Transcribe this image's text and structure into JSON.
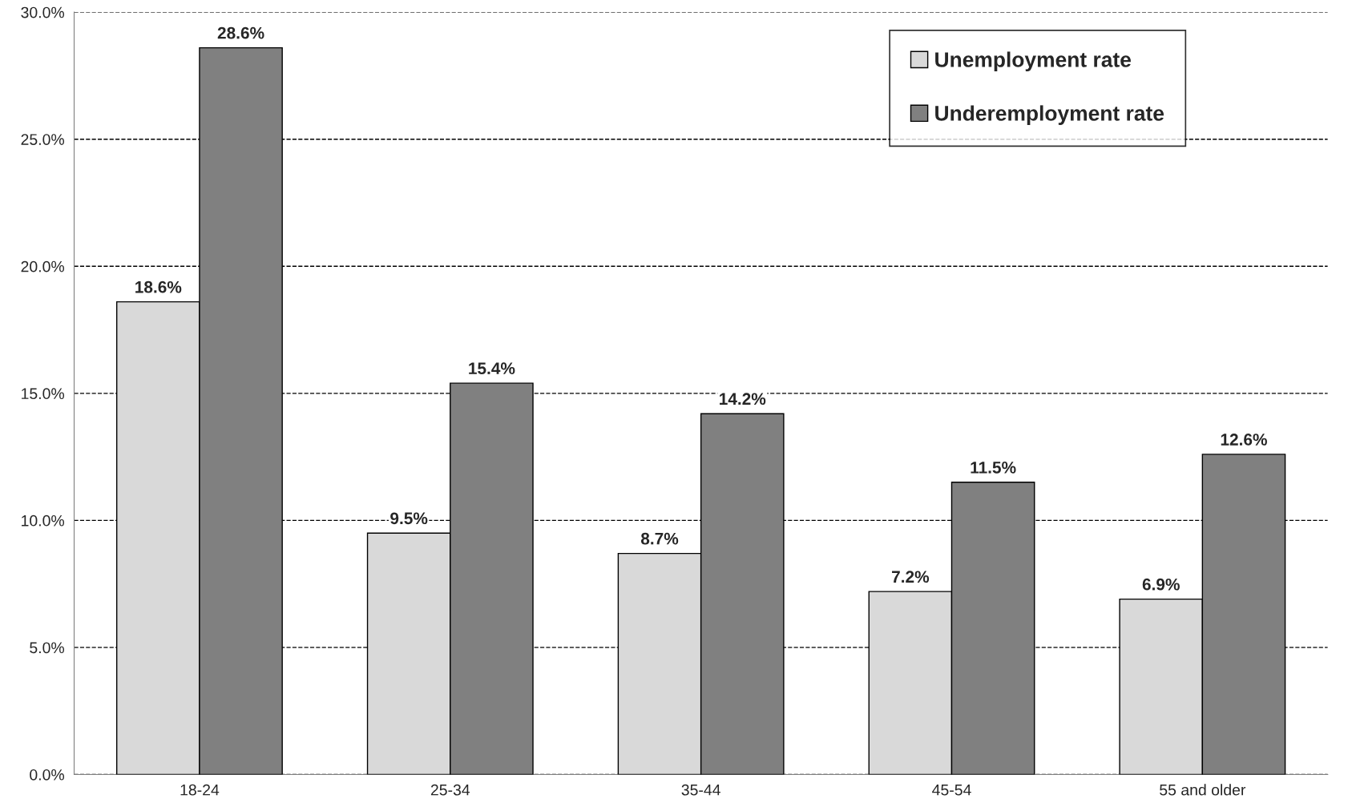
{
  "chart_data": {
    "type": "bar",
    "categories": [
      "18-24",
      "25-34",
      "35-44",
      "45-54",
      "55 and older"
    ],
    "series": [
      {
        "name": "Unemployment rate",
        "color": "#d9d9d9",
        "values": [
          18.6,
          9.5,
          8.7,
          7.2,
          6.9
        ],
        "value_labels": [
          "18.6%",
          "9.5%",
          "8.7%",
          "7.2%",
          "6.9%"
        ]
      },
      {
        "name": "Underemployment rate",
        "color": "#808080",
        "values": [
          28.6,
          15.4,
          14.2,
          11.5,
          12.6
        ],
        "value_labels": [
          "28.6%",
          "15.4%",
          "14.2%",
          "11.5%",
          "12.6%"
        ]
      }
    ],
    "ylim": [
      0,
      30
    ],
    "yticks": [
      {
        "value": 0,
        "label": "0.0%"
      },
      {
        "value": 5,
        "label": "5.0%"
      },
      {
        "value": 10,
        "label": "10.0%"
      },
      {
        "value": 15,
        "label": "15.0%"
      },
      {
        "value": 20,
        "label": "20.0%"
      },
      {
        "value": 25,
        "label": "25.0%"
      },
      {
        "value": 30,
        "label": "30.0%"
      }
    ],
    "grid": "y",
    "legend": "top right"
  }
}
